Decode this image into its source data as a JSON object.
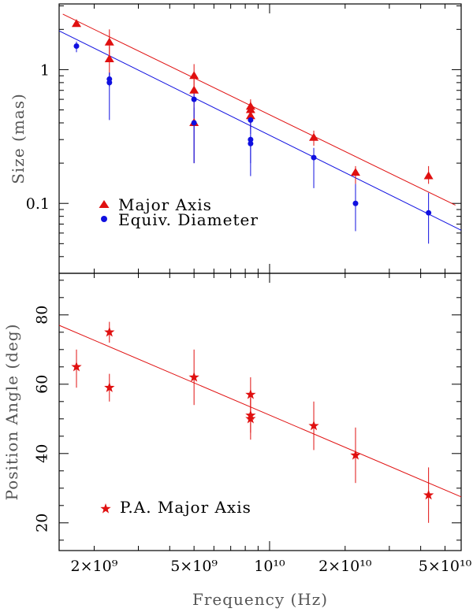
{
  "chart_data": [
    {
      "type": "scatter",
      "panel": "top",
      "ylabel": "Size (mas)",
      "xlabel": "",
      "xscale": "log",
      "yscale": "log",
      "xlim": [
        1450000000.0,
        58000000000.0
      ],
      "ylim": [
        0.03,
        3.1
      ],
      "ytick_labels": [
        {
          "v": 1,
          "label": "1"
        },
        {
          "v": 0.1,
          "label": "0.1"
        }
      ],
      "legend": [
        {
          "label": "Major Axis",
          "marker": "triangle",
          "color": "#e01010"
        },
        {
          "label": "Equiv. Diameter",
          "marker": "circle",
          "color": "#1010e0"
        }
      ],
      "series": [
        {
          "name": "Major Axis",
          "color": "#e01010",
          "marker": "triangle",
          "points": [
            {
              "x": 1700000000.0,
              "y": 2.2,
              "lo": 2.2,
              "hi": 2.2
            },
            {
              "x": 2300000000.0,
              "y": 1.6,
              "lo": 1.3,
              "hi": 2.0
            },
            {
              "x": 2300000000.0,
              "y": 1.2,
              "lo": 0.9,
              "hi": 1.5
            },
            {
              "x": 5000000000.0,
              "y": 0.9,
              "lo": 0.72,
              "hi": 1.1
            },
            {
              "x": 5000000000.0,
              "y": 0.7,
              "lo": 0.55,
              "hi": 0.85
            },
            {
              "x": 5000000000.0,
              "y": 0.4,
              "lo": 0.2,
              "hi": 0.55
            },
            {
              "x": 8400000000.0,
              "y": 0.53,
              "lo": 0.43,
              "hi": 0.6
            },
            {
              "x": 8400000000.0,
              "y": 0.5,
              "lo": 0.4,
              "hi": 0.58
            },
            {
              "x": 8400000000.0,
              "y": 0.45,
              "lo": 0.36,
              "hi": 0.52
            },
            {
              "x": 15000000000.0,
              "y": 0.31,
              "lo": 0.27,
              "hi": 0.35
            },
            {
              "x": 22000000000.0,
              "y": 0.17,
              "lo": 0.14,
              "hi": 0.19
            },
            {
              "x": 43000000000.0,
              "y": 0.16,
              "lo": 0.14,
              "hi": 0.19
            }
          ],
          "fit": {
            "x": [
              1500000000.0,
              55000000000.0
            ],
            "y": [
              2.6,
              0.097
            ]
          }
        },
        {
          "name": "Equiv. Diameter",
          "color": "#1010e0",
          "marker": "circle",
          "points": [
            {
              "x": 1700000000.0,
              "y": 1.5,
              "lo": 1.35,
              "hi": 1.62
            },
            {
              "x": 2300000000.0,
              "y": 0.85,
              "lo": 0.75,
              "hi": 0.95
            },
            {
              "x": 2300000000.0,
              "y": 0.8,
              "lo": 0.42,
              "hi": 0.95
            },
            {
              "x": 5000000000.0,
              "y": 0.6,
              "lo": 0.2,
              "hi": 0.72
            },
            {
              "x": 5000000000.0,
              "y": 0.4,
              "lo": 0.2,
              "hi": 0.52
            },
            {
              "x": 8400000000.0,
              "y": 0.42,
              "lo": 0.33,
              "hi": 0.52
            },
            {
              "x": 8400000000.0,
              "y": 0.3,
              "lo": 0.2,
              "hi": 0.4
            },
            {
              "x": 8400000000.0,
              "y": 0.28,
              "lo": 0.16,
              "hi": 0.32
            },
            {
              "x": 15000000000.0,
              "y": 0.22,
              "lo": 0.13,
              "hi": 0.26
            },
            {
              "x": 22000000000.0,
              "y": 0.1,
              "lo": 0.062,
              "hi": 0.14
            },
            {
              "x": 43000000000.0,
              "y": 0.085,
              "lo": 0.05,
              "hi": 0.12
            }
          ],
          "fit": {
            "x": [
              1450000000.0,
              58000000000.0
            ],
            "y": [
              1.95,
              0.063
            ]
          }
        }
      ]
    },
    {
      "type": "scatter",
      "panel": "bottom",
      "xlabel": "Frequency (Hz)",
      "ylabel": "Position Angle (deg)",
      "xscale": "log",
      "yscale": "linear",
      "xlim": [
        1450000000.0,
        58000000000.0
      ],
      "ylim": [
        12,
        92
      ],
      "yticks": [
        20,
        40,
        60,
        80
      ],
      "xtick_labels": [
        {
          "v": 2000000000.0,
          "label": "2×10⁹"
        },
        {
          "v": 5000000000.0,
          "label": "5×10⁹"
        },
        {
          "v": 10000000000.0,
          "label": "10¹⁰"
        },
        {
          "v": 20000000000.0,
          "label": "2×10¹⁰"
        },
        {
          "v": 50000000000.0,
          "label": "5×10¹⁰"
        }
      ],
      "legend": [
        {
          "label": "P.A. Major Axis",
          "marker": "star",
          "color": "#e01010"
        }
      ],
      "series": [
        {
          "name": "P.A. Major Axis",
          "color": "#e01010",
          "marker": "star",
          "points": [
            {
              "x": 1700000000.0,
              "y": 65,
              "lo": 59,
              "hi": 70
            },
            {
              "x": 2300000000.0,
              "y": 75,
              "lo": 72,
              "hi": 78
            },
            {
              "x": 2300000000.0,
              "y": 59,
              "lo": 55,
              "hi": 63
            },
            {
              "x": 5000000000.0,
              "y": 62,
              "lo": 54,
              "hi": 70
            },
            {
              "x": 8400000000.0,
              "y": 57,
              "lo": 52,
              "hi": 62
            },
            {
              "x": 8400000000.0,
              "y": 51,
              "lo": 46,
              "hi": 56
            },
            {
              "x": 8400000000.0,
              "y": 50,
              "lo": 44,
              "hi": 56
            },
            {
              "x": 15000000000.0,
              "y": 48,
              "lo": 41,
              "hi": 55
            },
            {
              "x": 22000000000.0,
              "y": 39.5,
              "lo": 31.5,
              "hi": 47.5
            },
            {
              "x": 43000000000.0,
              "y": 28,
              "lo": 20,
              "hi": 36
            }
          ],
          "fit": {
            "x": [
              1450000000.0,
              58000000000.0
            ],
            "y": [
              77,
              27.5
            ]
          }
        }
      ]
    }
  ]
}
